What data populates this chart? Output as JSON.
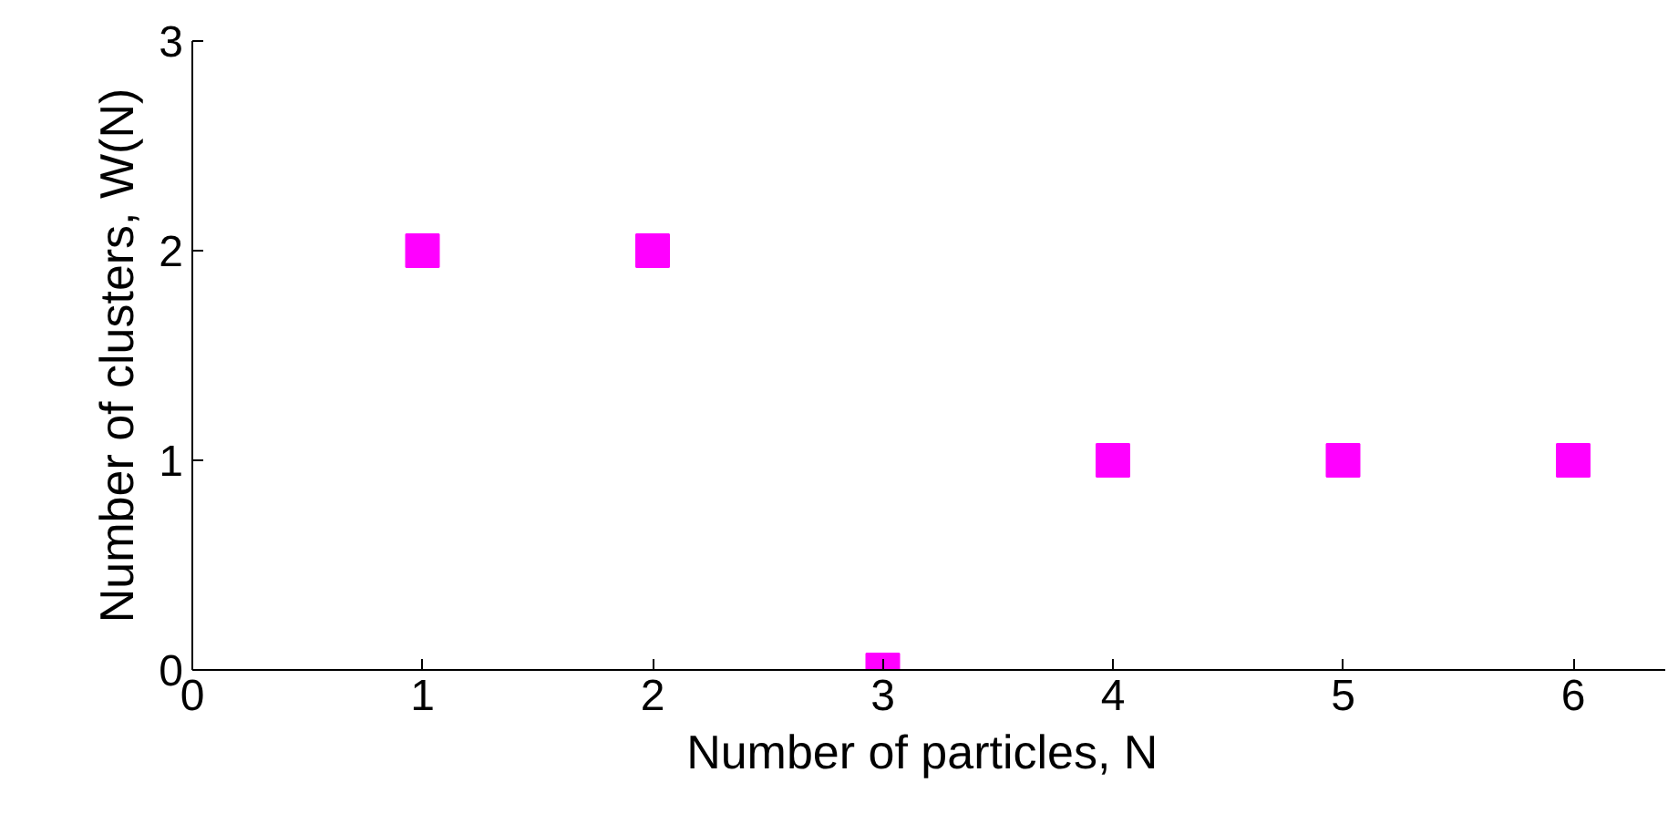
{
  "chart_data": {
    "type": "scatter",
    "xlabel": "Number of particles,  N",
    "ylabel": "Number of clusters, W(N)",
    "x": [
      1,
      2,
      3,
      4,
      5,
      6
    ],
    "series": [
      {
        "color": "#ff00ff",
        "values": [
          2,
          2,
          0,
          1,
          1,
          1
        ]
      }
    ],
    "xlim": [
      0,
      6.4
    ],
    "ylim": [
      0,
      3
    ],
    "xticks": [
      0,
      1,
      2,
      3,
      4,
      5,
      6
    ],
    "yticks": [
      0,
      1,
      2,
      3
    ],
    "grid": false,
    "marker": "square"
  }
}
